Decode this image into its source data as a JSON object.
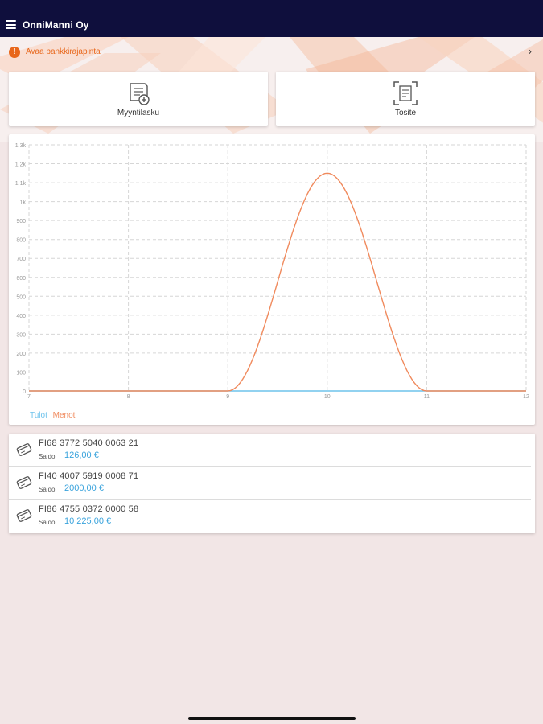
{
  "status_bar": {
    "time": "",
    "battery": ""
  },
  "header": {
    "title": "OnniManni Oy"
  },
  "notice": {
    "text": "Avaa pankkirajapinta"
  },
  "actions": [
    {
      "label": "Myyntilasku",
      "icon": "invoice-icon"
    },
    {
      "label": "Tosite",
      "icon": "receipt-scan-icon"
    }
  ],
  "colors": {
    "header": "#0f0f3d",
    "accent": "#e8671b",
    "income": "#6fc3ec",
    "expense": "#f08a5d",
    "balance": "#3aa3dc"
  },
  "chart_data": {
    "type": "line",
    "title": "",
    "xlabel": "",
    "ylabel": "",
    "x_ticks": [
      "7",
      "8",
      "9",
      "10",
      "11",
      "12"
    ],
    "y_ticks": [
      "0",
      "100",
      "200",
      "300",
      "400",
      "500",
      "600",
      "700",
      "800",
      "900",
      "1k",
      "1.1k",
      "1.2k",
      "1.3k"
    ],
    "xlim": [
      7,
      12
    ],
    "ylim": [
      0,
      1300
    ],
    "grid": true,
    "legend_position": "bottom-left",
    "series": [
      {
        "name": "Tulot",
        "color": "#6fc3ec",
        "x": [
          7,
          8,
          9,
          10,
          11,
          12
        ],
        "values": [
          0,
          0,
          0,
          0,
          0,
          0
        ]
      },
      {
        "name": "Menot",
        "color": "#f08a5d",
        "x": [
          7,
          8,
          9,
          10,
          11,
          12
        ],
        "values": [
          0,
          0,
          0,
          1150,
          0,
          0
        ]
      }
    ]
  },
  "accounts": [
    {
      "iban": "FI68 3772 5040 0063 21",
      "saldo_label": "Saldo:",
      "saldo": "126,00 €"
    },
    {
      "iban": "FI40 4007 5919 0008 71",
      "saldo_label": "Saldo:",
      "saldo": "2000,00 €"
    },
    {
      "iban": "FI86 4755 0372 0000 58",
      "saldo_label": "Saldo:",
      "saldo": "10 225,00 €"
    }
  ]
}
